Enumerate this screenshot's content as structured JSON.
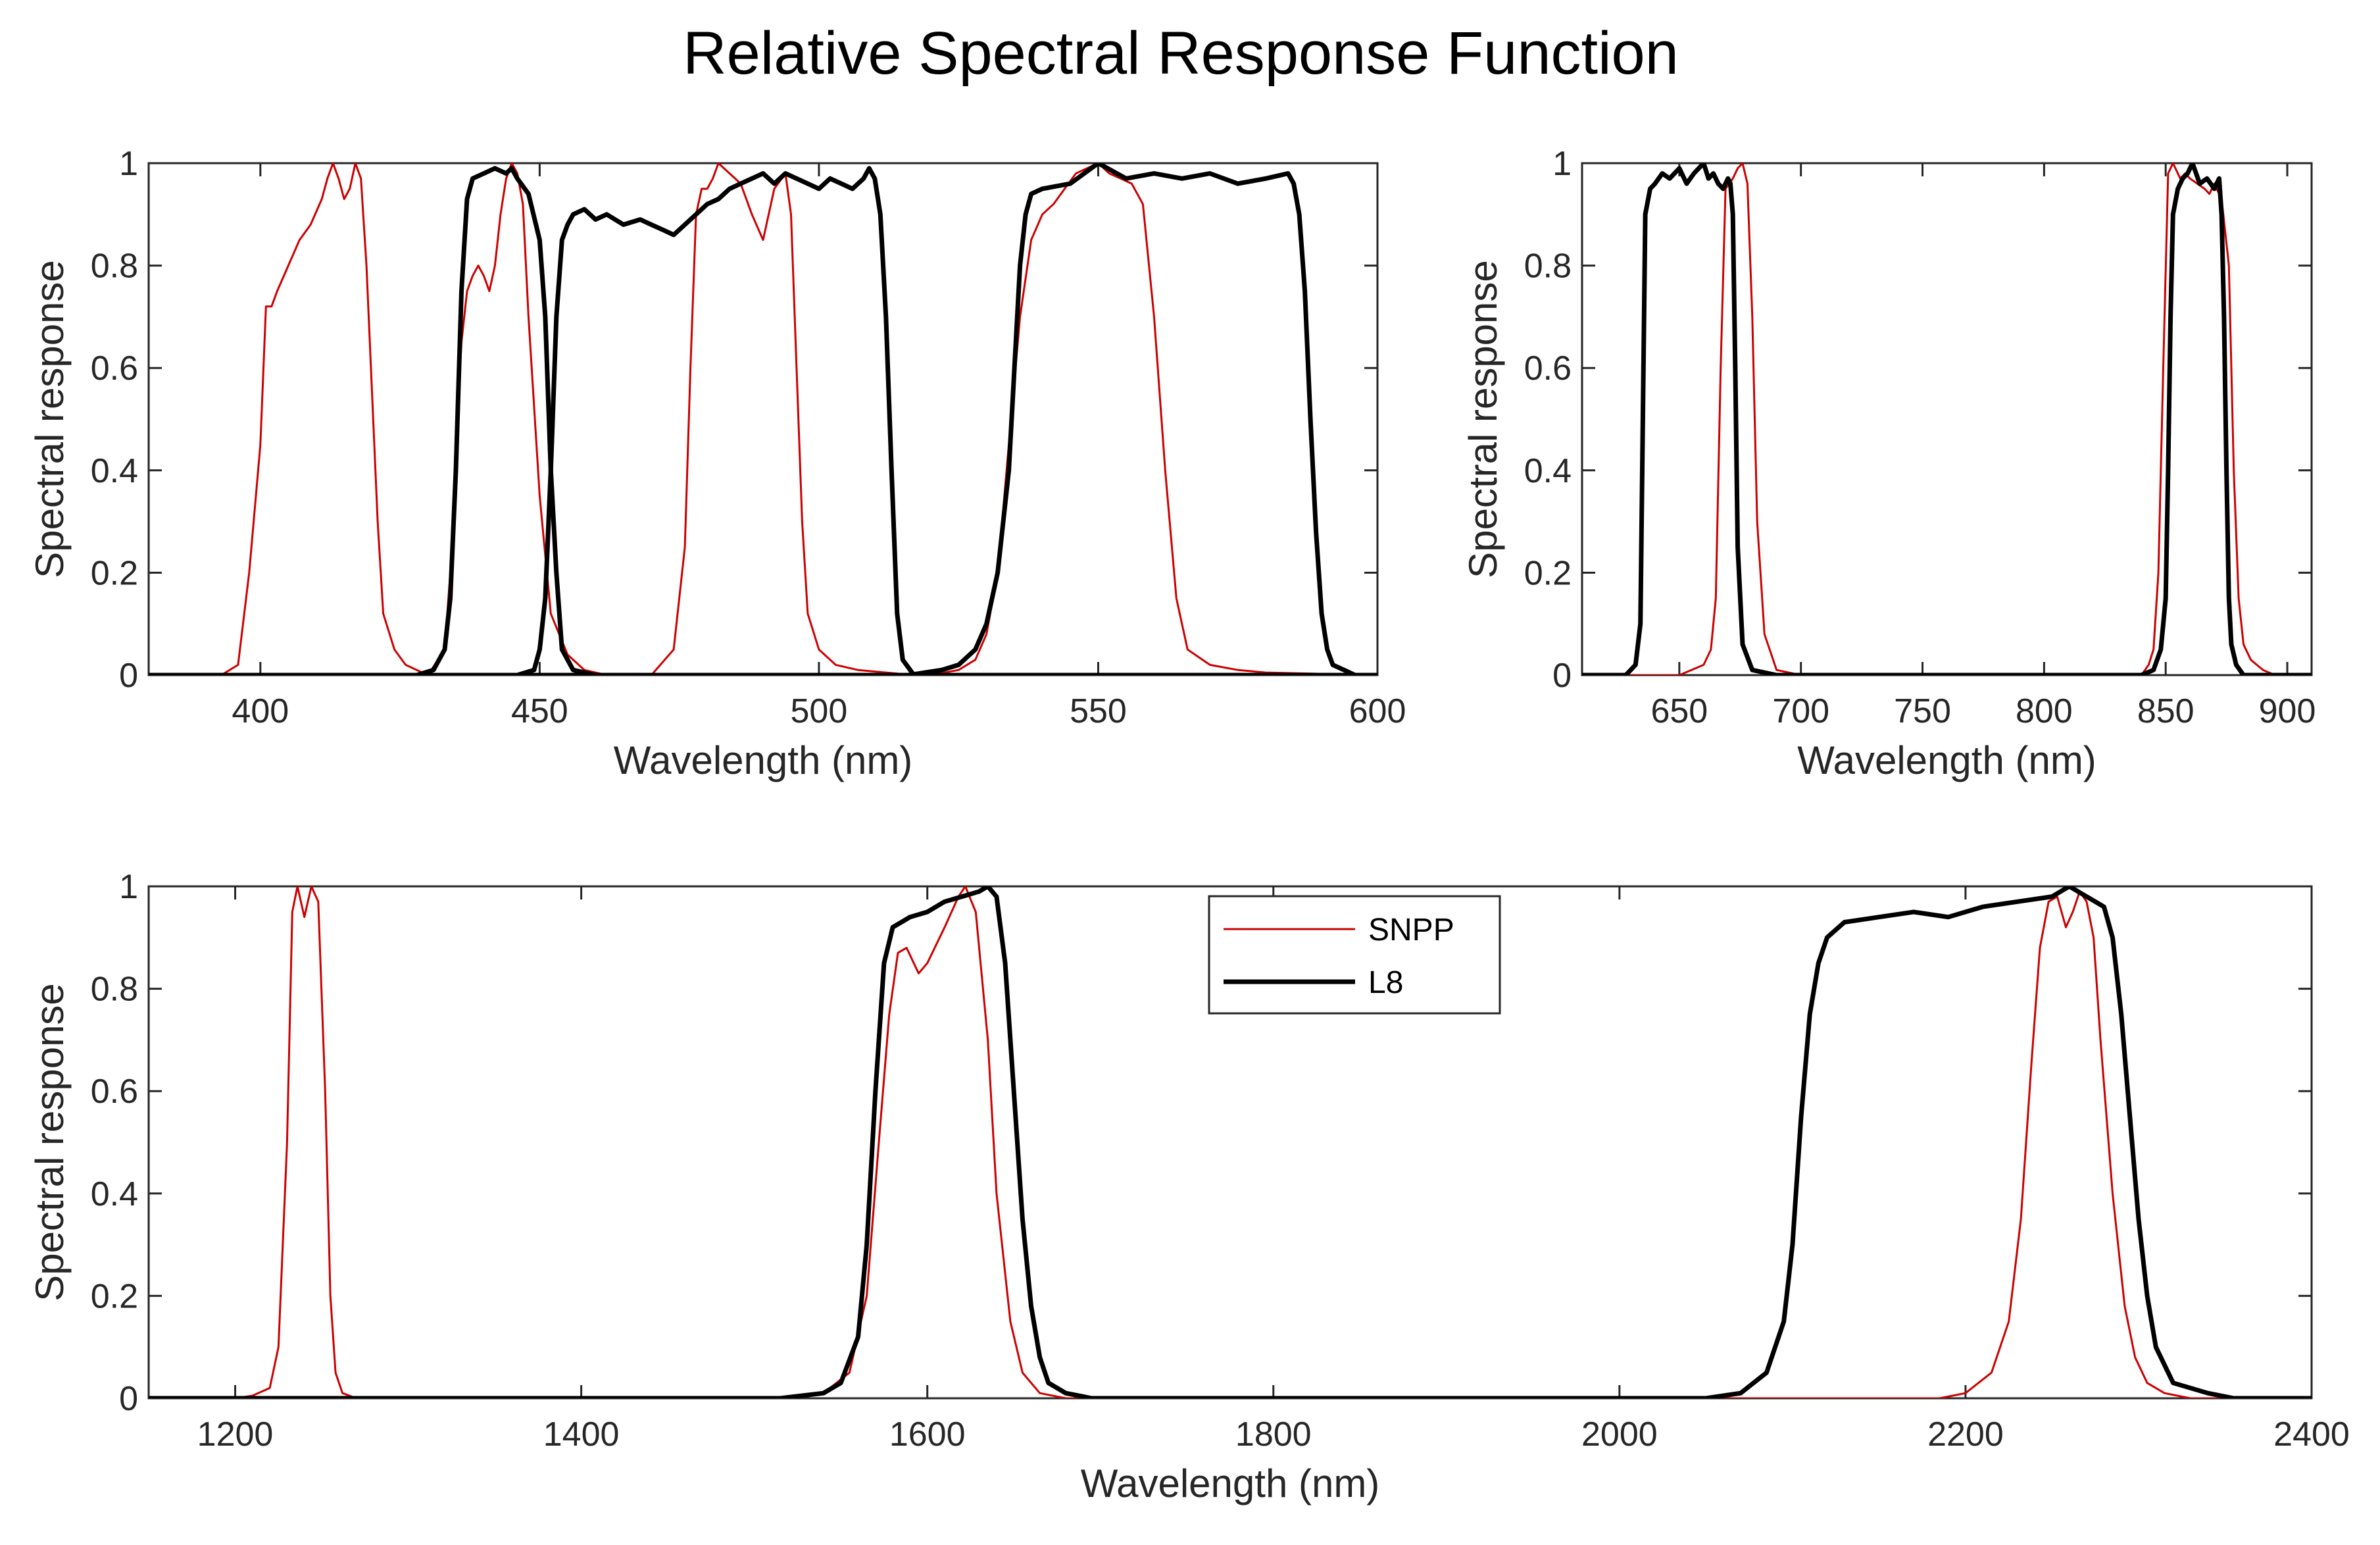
{
  "chart_data": {
    "title": "Relative Spectral Response Function",
    "type": "line",
    "colors": {
      "SNPP": "#cc0000",
      "L8": "#000000"
    },
    "legend": {
      "placement": "inside-top-center",
      "entries": [
        "SNPP",
        "L8"
      ]
    },
    "panels": [
      {
        "id": "vis",
        "xlabel": "Wavelength (nm)",
        "ylabel": "Spectral response",
        "xlim": [
          380,
          600
        ],
        "ylim": [
          0,
          1
        ],
        "xticks": [
          400,
          450,
          500,
          550,
          600
        ],
        "xtick_labels": [
          "400",
          "450",
          "500",
          "550",
          "600"
        ],
        "yticks": [
          0,
          0.2,
          0.4,
          0.6,
          0.8,
          1
        ],
        "ytick_labels": [
          "0",
          "0.2",
          "0.4",
          "0.6",
          "0.8",
          "1"
        ],
        "series": [
          {
            "name": "SNPP",
            "x": [
              380,
              393,
              396,
              398,
              400,
              401,
              402,
              403,
              405,
              407,
              409,
              411,
              412,
              413,
              414,
              415,
              416,
              417,
              418,
              419,
              420,
              421,
              422,
              424,
              426,
              428,
              430,
              600
            ],
            "y": [
              0,
              0,
              0.02,
              0.2,
              0.45,
              0.72,
              0.72,
              0.75,
              0.8,
              0.85,
              0.88,
              0.93,
              0.97,
              1.0,
              0.97,
              0.93,
              0.95,
              1.0,
              0.97,
              0.8,
              0.55,
              0.3,
              0.12,
              0.05,
              0.02,
              0.01,
              0,
              0
            ]
          },
          {
            "name": "SNPP",
            "x": [
              380,
              430,
              433,
              434,
              435,
              436,
              437,
              438,
              439,
              440,
              441,
              442,
              443,
              444,
              445,
              446,
              447,
              448,
              450,
              452,
              455,
              458,
              462,
              600
            ],
            "y": [
              0,
              0,
              0.05,
              0.2,
              0.45,
              0.65,
              0.75,
              0.78,
              0.8,
              0.78,
              0.75,
              0.8,
              0.9,
              0.97,
              1.0,
              0.98,
              0.92,
              0.7,
              0.35,
              0.12,
              0.04,
              0.01,
              0,
              0
            ]
          },
          {
            "name": "SNPP",
            "x": [
              380,
              470,
              474,
              476,
              477,
              478,
              479,
              480,
              481,
              482,
              484,
              486,
              488,
              490,
              492,
              494,
              495,
              496,
              497,
              498,
              500,
              503,
              507,
              512,
              517,
              600
            ],
            "y": [
              0,
              0,
              0.05,
              0.25,
              0.6,
              0.9,
              0.95,
              0.95,
              0.97,
              1.0,
              0.98,
              0.96,
              0.9,
              0.85,
              0.95,
              0.98,
              0.9,
              0.6,
              0.3,
              0.12,
              0.05,
              0.02,
              0.01,
              0.005,
              0,
              0
            ]
          },
          {
            "name": "SNPP",
            "x": [
              380,
              520,
              525,
              528,
              530,
              532,
              534,
              536,
              538,
              540,
              542,
              544,
              546,
              548,
              550,
              552,
              554,
              556,
              558,
              560,
              562,
              564,
              566,
              570,
              575,
              580,
              600
            ],
            "y": [
              0,
              0,
              0.01,
              0.03,
              0.08,
              0.2,
              0.45,
              0.7,
              0.85,
              0.9,
              0.92,
              0.95,
              0.98,
              0.99,
              1.0,
              0.98,
              0.97,
              0.96,
              0.92,
              0.7,
              0.4,
              0.15,
              0.05,
              0.02,
              0.01,
              0.005,
              0
            ]
          },
          {
            "name": "L8",
            "x": [
              380,
              428,
              431,
              433,
              434,
              435,
              436,
              437,
              438,
              440,
              442,
              444,
              445,
              446,
              448,
              450,
              451,
              452,
              453,
              454,
              456,
              460,
              600
            ],
            "y": [
              0,
              0,
              0.01,
              0.05,
              0.15,
              0.4,
              0.75,
              0.93,
              0.97,
              0.98,
              0.99,
              0.98,
              0.99,
              0.97,
              0.94,
              0.85,
              0.7,
              0.4,
              0.2,
              0.05,
              0.01,
              0,
              0
            ]
          },
          {
            "name": "L8",
            "x": [
              380,
              436,
              446,
              449,
              450,
              451,
              452,
              453,
              454,
              455,
              456,
              458,
              460,
              462,
              465,
              468,
              470,
              472,
              474,
              476,
              478,
              480,
              482,
              484,
              486,
              488,
              490,
              492,
              494,
              496,
              498,
              500,
              502,
              504,
              506,
              508,
              509,
              510,
              511,
              512,
              513,
              514,
              515,
              517,
              600
            ],
            "y": [
              0,
              0,
              0,
              0.01,
              0.05,
              0.15,
              0.4,
              0.7,
              0.85,
              0.88,
              0.9,
              0.91,
              0.89,
              0.9,
              0.88,
              0.89,
              0.88,
              0.87,
              0.86,
              0.88,
              0.9,
              0.92,
              0.93,
              0.95,
              0.96,
              0.97,
              0.98,
              0.96,
              0.98,
              0.97,
              0.96,
              0.95,
              0.97,
              0.96,
              0.95,
              0.97,
              0.99,
              0.97,
              0.9,
              0.7,
              0.4,
              0.12,
              0.03,
              0,
              0
            ]
          },
          {
            "name": "L8",
            "x": [
              380,
              516,
              522,
              525,
              528,
              530,
              532,
              534,
              535,
              536,
              537,
              538,
              540,
              545,
              550,
              555,
              560,
              565,
              570,
              575,
              580,
              584,
              585,
              586,
              587,
              588,
              589,
              590,
              591,
              592,
              594,
              596,
              600
            ],
            "y": [
              0,
              0,
              0.01,
              0.02,
              0.05,
              0.1,
              0.2,
              0.4,
              0.6,
              0.8,
              0.9,
              0.94,
              0.95,
              0.96,
              1.0,
              0.97,
              0.98,
              0.97,
              0.98,
              0.96,
              0.97,
              0.98,
              0.96,
              0.9,
              0.75,
              0.5,
              0.28,
              0.12,
              0.05,
              0.02,
              0.01,
              0,
              0
            ]
          }
        ]
      },
      {
        "id": "nir",
        "xlabel": "Wavelength (nm)",
        "ylabel": "Spectral response",
        "xlim": [
          610,
          910
        ],
        "ylim": [
          0,
          1
        ],
        "xticks": [
          650,
          700,
          750,
          800,
          850,
          900
        ],
        "xtick_labels": [
          "650",
          "700",
          "750",
          "800",
          "850",
          "900"
        ],
        "yticks": [
          0,
          0.2,
          0.4,
          0.6,
          0.8,
          1
        ],
        "ytick_labels": [
          "0",
          "0.2",
          "0.4",
          "0.6",
          "0.8",
          "1"
        ],
        "series": [
          {
            "name": "SNPP",
            "x": [
              610,
              650,
              655,
              660,
              663,
              665,
              667,
              669,
              672,
              674,
              676,
              678,
              680,
              682,
              685,
              690,
              700,
              840,
              843,
              845,
              847,
              849,
              851,
              853,
              856,
              858,
              860,
              863,
              866,
              868,
              870,
              873,
              876,
              878,
              880,
              882,
              885,
              890,
              895,
              910
            ],
            "y": [
              0,
              0,
              0.01,
              0.02,
              0.05,
              0.15,
              0.6,
              0.95,
              0.97,
              0.99,
              1.0,
              0.96,
              0.7,
              0.3,
              0.08,
              0.01,
              0,
              0,
              0.02,
              0.05,
              0.2,
              0.6,
              0.98,
              1.0,
              0.97,
              0.98,
              0.97,
              0.96,
              0.95,
              0.94,
              0.96,
              0.93,
              0.8,
              0.4,
              0.15,
              0.06,
              0.03,
              0.01,
              0,
              0
            ]
          },
          {
            "name": "L8",
            "x": [
              610,
              628,
              632,
              634,
              635,
              636,
              638,
              640,
              643,
              646,
              650,
              653,
              656,
              660,
              662,
              664,
              666,
              668,
              670,
              671,
              672,
              673,
              674,
              676,
              680,
              690,
              840,
              845,
              848,
              850,
              851,
              852,
              853,
              855,
              857,
              859,
              861,
              864,
              867,
              870,
              872,
              873,
              874,
              875,
              876,
              877,
              879,
              882,
              910
            ],
            "y": [
              0,
              0,
              0.02,
              0.1,
              0.5,
              0.9,
              0.95,
              0.96,
              0.98,
              0.97,
              0.99,
              0.96,
              0.98,
              1.0,
              0.97,
              0.98,
              0.96,
              0.95,
              0.97,
              0.96,
              0.9,
              0.6,
              0.25,
              0.06,
              0.01,
              0,
              0,
              0.01,
              0.05,
              0.15,
              0.4,
              0.7,
              0.9,
              0.95,
              0.97,
              0.98,
              1.0,
              0.96,
              0.97,
              0.95,
              0.97,
              0.9,
              0.7,
              0.4,
              0.15,
              0.06,
              0.02,
              0,
              0
            ]
          }
        ]
      },
      {
        "id": "swir",
        "xlabel": "Wavelength (nm)",
        "ylabel": "Spectral response",
        "xlim": [
          1150,
          2400
        ],
        "ylim": [
          0,
          1
        ],
        "xticks": [
          1200,
          1400,
          1600,
          1800,
          2000,
          2200,
          2400
        ],
        "xtick_labels": [
          "1200",
          "1400",
          "1600",
          "1800",
          "2000",
          "2200",
          "2400"
        ],
        "yticks": [
          0,
          0.2,
          0.4,
          0.6,
          0.8,
          1
        ],
        "ytick_labels": [
          "0",
          "0.2",
          "0.4",
          "0.6",
          "0.8",
          "1"
        ],
        "series": [
          {
            "name": "SNPP",
            "x": [
              1150,
              1200,
              1210,
              1220,
              1225,
              1230,
              1233,
              1236,
              1240,
              1244,
              1248,
              1252,
              1255,
              1258,
              1262,
              1270,
              1280,
              1515,
              1540,
              1555,
              1565,
              1572,
              1578,
              1583,
              1588,
              1595,
              1600,
              1610,
              1618,
              1622,
              1628,
              1635,
              1640,
              1648,
              1655,
              1665,
              1680,
              1700,
              2185,
              2200,
              2215,
              2225,
              2232,
              2238,
              2243,
              2248,
              2253,
              2258,
              2262,
              2266,
              2270,
              2274,
              2278,
              2285,
              2292,
              2298,
              2305,
              2315,
              2330,
              2400
            ],
            "y": [
              0,
              0,
              0.005,
              0.02,
              0.1,
              0.5,
              0.95,
              1.0,
              0.94,
              1.0,
              0.97,
              0.6,
              0.2,
              0.05,
              0.01,
              0,
              0,
              0,
              0.01,
              0.05,
              0.2,
              0.5,
              0.75,
              0.87,
              0.88,
              0.83,
              0.85,
              0.92,
              0.98,
              1.0,
              0.95,
              0.7,
              0.4,
              0.15,
              0.05,
              0.01,
              0,
              0,
              0,
              0.01,
              0.05,
              0.15,
              0.35,
              0.65,
              0.88,
              0.97,
              0.98,
              0.92,
              0.95,
              0.99,
              0.97,
              0.9,
              0.7,
              0.4,
              0.18,
              0.08,
              0.03,
              0.01,
              0,
              0
            ]
          },
          {
            "name": "L8",
            "x": [
              1150,
              1515,
              1540,
              1550,
              1560,
              1565,
              1570,
              1575,
              1580,
              1590,
              1600,
              1610,
              1620,
              1630,
              1635,
              1640,
              1645,
              1650,
              1655,
              1660,
              1665,
              1670,
              1680,
              1695,
              2050,
              2070,
              2085,
              2095,
              2100,
              2105,
              2110,
              2115,
              2120,
              2130,
              2150,
              2170,
              2190,
              2210,
              2230,
              2250,
              2260,
              2270,
              2275,
              2280,
              2285,
              2290,
              2295,
              2300,
              2305,
              2310,
              2320,
              2340,
              2355,
              2400
            ],
            "y": [
              0,
              0,
              0.01,
              0.03,
              0.12,
              0.3,
              0.6,
              0.85,
              0.92,
              0.94,
              0.95,
              0.97,
              0.98,
              0.99,
              1.0,
              0.98,
              0.85,
              0.6,
              0.35,
              0.18,
              0.08,
              0.03,
              0.01,
              0,
              0,
              0.01,
              0.05,
              0.15,
              0.3,
              0.55,
              0.75,
              0.85,
              0.9,
              0.93,
              0.94,
              0.95,
              0.94,
              0.96,
              0.97,
              0.98,
              1.0,
              0.98,
              0.97,
              0.96,
              0.9,
              0.75,
              0.55,
              0.35,
              0.2,
              0.1,
              0.03,
              0.01,
              0,
              0
            ]
          }
        ]
      }
    ]
  }
}
